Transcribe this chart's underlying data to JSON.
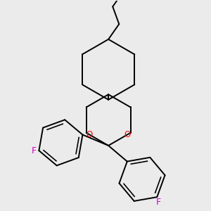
{
  "background_color": "#ebebeb",
  "bond_color": "#000000",
  "oxygen_color": "#ff0000",
  "fluorine_color": "#cc00cc",
  "line_width": 1.4,
  "figsize": [
    3.0,
    3.0
  ],
  "dpi": 100,
  "xlim": [
    -1.6,
    1.6
  ],
  "ylim": [
    -1.8,
    1.8
  ]
}
